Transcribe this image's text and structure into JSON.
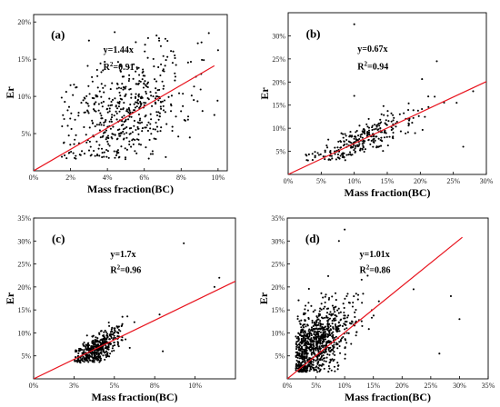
{
  "chart_data": [
    {
      "type": "scatter",
      "panel_label": "(a)",
      "xlabel": "Mass fraction(BC)",
      "ylabel": "Er",
      "xlim": [
        0,
        10.5
      ],
      "ylim": [
        0,
        21
      ],
      "xticks": [
        0,
        2,
        4,
        6,
        8,
        10
      ],
      "yticks": [
        5,
        10,
        15,
        20
      ],
      "xtick_labels": [
        "0%",
        "2%",
        "4%",
        "6%",
        "8%",
        "10%"
      ],
      "ytick_labels": [
        "5%",
        "10%",
        "15%",
        "20%"
      ],
      "equation": "y=1.44x",
      "r2_text": "R",
      "r2_sup": "2",
      "r2_value": "=0.91",
      "fit": {
        "slope": 1.44,
        "x_range": [
          0,
          9.8
        ]
      },
      "point_cloud": {
        "count": 520,
        "x_center": 5.0,
        "x_spread": 1.9,
        "x_min": 1.5,
        "x_max": 10.0,
        "y_center": 7.8,
        "y_spread": 3.6,
        "y_min": 1.5,
        "y_max": 19,
        "seed": 11
      },
      "points": [
        [
          9.5,
          18.5
        ],
        [
          10.0,
          16.2
        ],
        [
          2.0,
          11.5
        ],
        [
          3.0,
          17.5
        ],
        [
          6.8,
          17.8
        ],
        [
          9.8,
          7.5
        ]
      ],
      "grid": false
    },
    {
      "type": "scatter",
      "panel_label": "(b)",
      "xlabel": "Mass fraction(BC)",
      "ylabel": "Er",
      "xlim": [
        0,
        30
      ],
      "ylim": [
        0,
        35
      ],
      "xticks": [
        0,
        5,
        10,
        15,
        20,
        25,
        30
      ],
      "yticks": [
        5,
        10,
        15,
        20,
        25,
        30
      ],
      "xtick_labels": [
        "0%",
        "5%",
        "10%",
        "15%",
        "20%",
        "25%",
        "30%"
      ],
      "ytick_labels": [
        "5%",
        "10%",
        "15%",
        "20%",
        "25%",
        "30%"
      ],
      "equation": "y=0.67x",
      "r2_text": "R",
      "r2_sup": "2",
      "r2_value": "=0.94",
      "fit": {
        "slope": 0.67,
        "x_range": [
          0,
          30
        ]
      },
      "point_cloud": {
        "count": 290,
        "x_center": 11.0,
        "x_spread": 4.0,
        "x_min": 2.5,
        "x_max": 28,
        "y_slope": 0.67,
        "y_offset": 0,
        "y_noise": 1.2,
        "y_min": 3,
        "y_max": 30,
        "seed": 23
      },
      "points": [
        [
          10.0,
          32.5
        ],
        [
          22.5,
          24.5
        ],
        [
          10.0,
          17.0
        ],
        [
          26.5,
          6.0
        ],
        [
          28.0,
          18.0
        ],
        [
          25.5,
          15.5
        ]
      ],
      "grid": false
    },
    {
      "type": "scatter",
      "panel_label": "(c)",
      "xlabel": "Mass fraction(BC)",
      "ylabel": "Er",
      "xlim": [
        0,
        12.5
      ],
      "ylim": [
        0,
        35
      ],
      "xticks": [
        0,
        2.5,
        5,
        7.5,
        10
      ],
      "yticks": [
        5,
        10,
        15,
        20,
        25,
        30,
        35
      ],
      "xtick_labels": [
        "0%",
        "3%",
        "5%",
        "8%",
        "10%"
      ],
      "ytick_labels": [
        "5%",
        "10%",
        "15%",
        "20%",
        "25%",
        "30%",
        "35%"
      ],
      "equation": "y=1.7x",
      "r2_text": "R",
      "r2_sup": "2",
      "r2_value": "=0.96",
      "fit": {
        "slope": 1.7,
        "x_range": [
          0,
          12.5
        ]
      },
      "point_cloud": {
        "count": 430,
        "x_center": 3.9,
        "x_spread": 0.8,
        "x_min": 2.5,
        "x_max": 10.5,
        "y_slope": 1.7,
        "y_offset": 0,
        "y_noise": 1.1,
        "y_min": 3.5,
        "y_max": 23,
        "seed": 37
      },
      "points": [
        [
          9.3,
          29.5
        ],
        [
          11.5,
          22.0
        ],
        [
          11.2,
          20.0
        ],
        [
          5.5,
          13.5
        ],
        [
          7.8,
          14.0
        ],
        [
          8.0,
          6.0
        ]
      ],
      "grid": false
    },
    {
      "type": "scatter",
      "panel_label": "(d)",
      "xlabel": "Mass fraction(BC)",
      "ylabel": "Er",
      "xlim": [
        0,
        35
      ],
      "ylim": [
        0,
        35
      ],
      "xticks": [
        0,
        5,
        10,
        15,
        20,
        25,
        30,
        35
      ],
      "yticks": [
        5,
        10,
        15,
        20,
        25,
        30,
        35
      ],
      "xtick_labels": [
        "0%",
        "5%",
        "10%",
        "15%",
        "20%",
        "25%",
        "30%",
        "35%"
      ],
      "ytick_labels": [
        "5%",
        "10%",
        "15%",
        "20%",
        "25%",
        "30%",
        "35%"
      ],
      "equation": "y=1.01x",
      "r2_text": "R",
      "r2_sup": "2",
      "r2_value": "=0.86",
      "fit": {
        "slope": 1.01,
        "x_range": [
          0,
          30.5
        ]
      },
      "point_cloud": {
        "count": 900,
        "x_center": 5.0,
        "x_spread": 3.5,
        "x_min": 1.5,
        "x_max": 28,
        "y_center": 7.5,
        "y_spread": 3.8,
        "y_min": 1.5,
        "y_max": 26,
        "seed": 53
      },
      "points": [
        [
          10.0,
          32.5
        ],
        [
          9.0,
          30.0
        ],
        [
          28.5,
          18.0
        ],
        [
          26.5,
          5.5
        ],
        [
          22.0,
          19.5
        ],
        [
          30.0,
          13.0
        ]
      ],
      "grid": false
    }
  ],
  "colors": {
    "points": "#000000",
    "fit_line": "#e8141e",
    "frame": "#000000"
  }
}
